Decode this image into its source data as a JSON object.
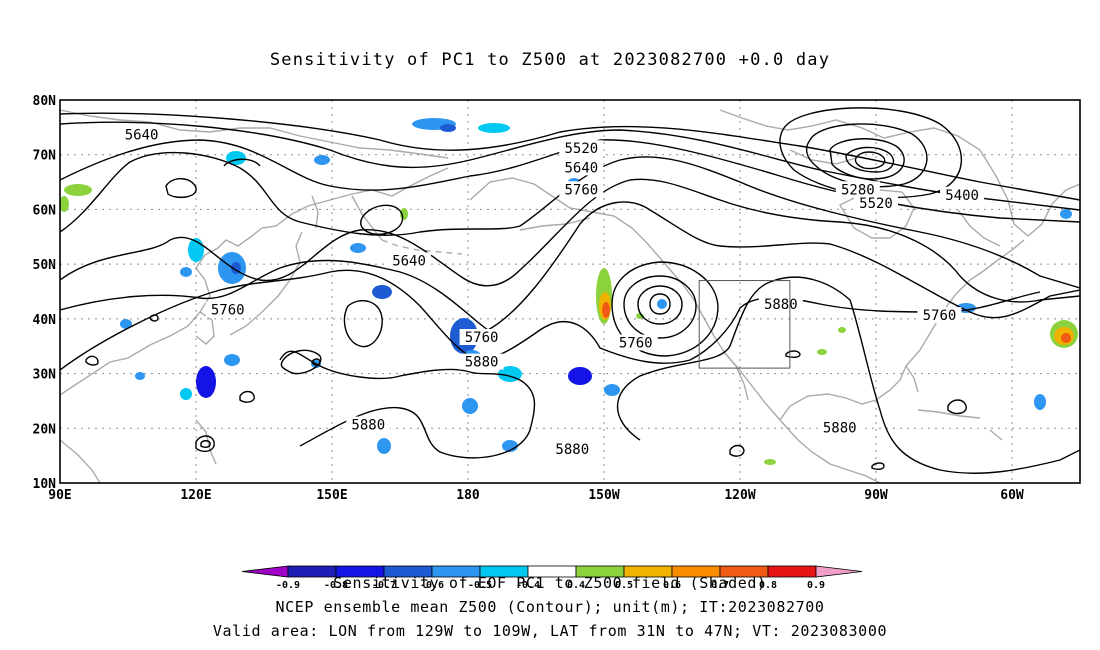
{
  "title": "Sensitivity of PC1 to Z500 at 2023082700 +0.0 day",
  "map": {
    "lat_labels": [
      "80N",
      "70N",
      "60N",
      "50N",
      "40N",
      "30N",
      "20N",
      "10N"
    ],
    "lon_labels": [
      "90E",
      "120E",
      "150E",
      "180",
      "150W",
      "120W",
      "90W",
      "60W"
    ],
    "lon_range": [
      90,
      315
    ],
    "lat_range": [
      10,
      80
    ],
    "valid_box": {
      "lon": [
        231,
        251
      ],
      "lat": [
        31,
        47
      ]
    },
    "contour_labels": [
      {
        "text": "5640",
        "lon": 108,
        "lat": 73.5
      },
      {
        "text": "5520",
        "lon": 205,
        "lat": 71
      },
      {
        "text": "5640",
        "lon": 205,
        "lat": 67.5
      },
      {
        "text": "5760",
        "lon": 205,
        "lat": 63.5
      },
      {
        "text": "5280",
        "lon": 266,
        "lat": 63.5
      },
      {
        "text": "5520",
        "lon": 270,
        "lat": 61
      },
      {
        "text": "5400",
        "lon": 289,
        "lat": 62.5
      },
      {
        "text": "5640",
        "lon": 167,
        "lat": 50.5
      },
      {
        "text": "5760",
        "lon": 127,
        "lat": 41.5
      },
      {
        "text": "5880",
        "lon": 249,
        "lat": 42.5
      },
      {
        "text": "5760",
        "lon": 284,
        "lat": 40.5
      },
      {
        "text": "5760",
        "lon": 183,
        "lat": 36.5
      },
      {
        "text": "5760",
        "lon": 217,
        "lat": 35.5
      },
      {
        "text": "5880",
        "lon": 183,
        "lat": 32
      },
      {
        "text": "5880",
        "lon": 158,
        "lat": 20.5
      },
      {
        "text": "5880",
        "lon": 203,
        "lat": 16
      },
      {
        "text": "5880",
        "lon": 262,
        "lat": 20
      }
    ]
  },
  "colorbar": {
    "labels": [
      "-0.9",
      "-0.8",
      "-0.7",
      "-0.6",
      "-0.5",
      "-0.4",
      "0.4",
      "0.5",
      "0.6",
      "0.7",
      "0.8",
      "0.9"
    ],
    "colors": [
      "#a000c8",
      "#1e1eb4",
      "#1414e6",
      "#1e5ad2",
      "#2d96f0",
      "#00c8f0",
      "#ffffff",
      "#8cd23c",
      "#f0b400",
      "#fa8c00",
      "#f05a14",
      "#e61414",
      "#f0a0c8"
    ]
  },
  "captions": {
    "line1": "Sensitivity of EOF PC1 to Z500 field (Shaded)",
    "line2": "NCEP ensemble mean Z500 (Contour); unit(m); IT:2023082700",
    "line3": "Valid area: LON from 129W to 109W, LAT from 31N to 47N; VT: 2023083000"
  }
}
